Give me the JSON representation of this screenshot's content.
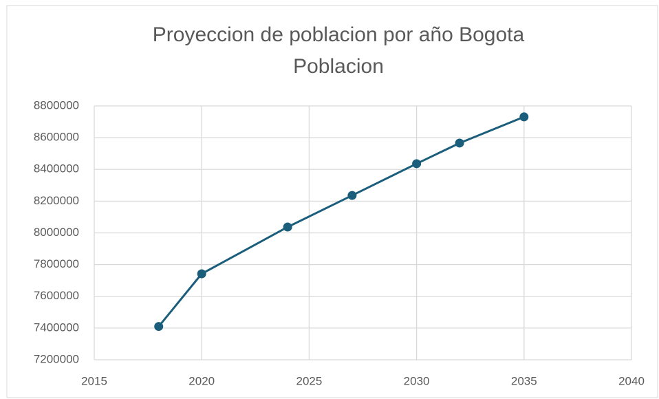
{
  "chart_data": {
    "type": "line",
    "title": "Proyeccion de poblacion por año Bogota",
    "subtitle": "Poblacion",
    "x": [
      2018,
      2020,
      2024,
      2027,
      2030,
      2032,
      2035
    ],
    "values": [
      7410000,
      7742000,
      8037000,
      8236000,
      8436000,
      8566000,
      8731000
    ],
    "color": "#1b5e7b",
    "xlim": [
      2015,
      2040
    ],
    "xticks": [
      2015,
      2020,
      2025,
      2030,
      2035,
      2040
    ],
    "ylim": [
      7200000,
      8800000
    ],
    "yticks": [
      7200000,
      7400000,
      7600000,
      7800000,
      8000000,
      8200000,
      8400000,
      8600000,
      8800000
    ],
    "grid": true
  }
}
